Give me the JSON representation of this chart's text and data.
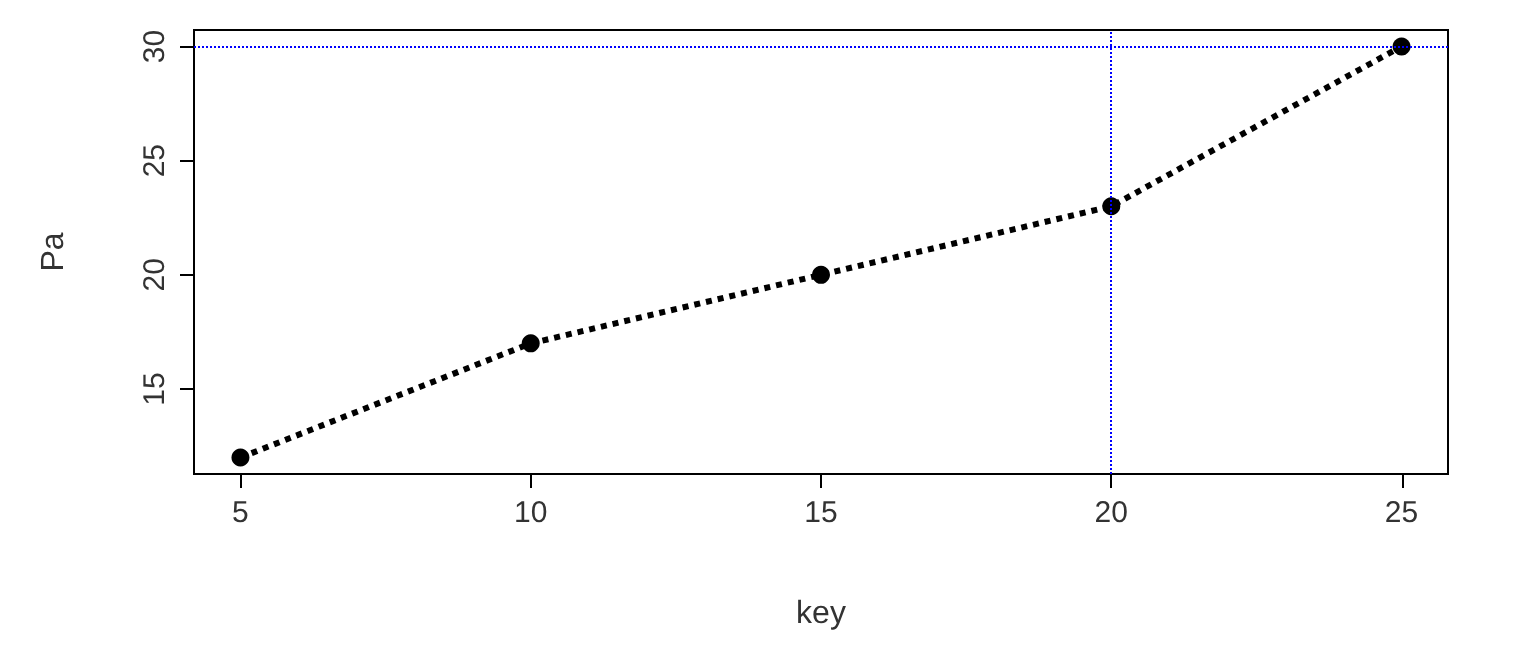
{
  "chart_data": {
    "type": "line",
    "xlabel": "key",
    "ylabel": "Pa",
    "x": [
      5,
      10,
      15,
      20,
      25
    ],
    "series": [
      {
        "color": "#000000",
        "values": [
          12,
          17,
          20,
          23,
          30
        ]
      }
    ],
    "xlim": [
      4.2,
      25.8
    ],
    "xticks": [
      5,
      10,
      15,
      20,
      25
    ],
    "ylim": [
      11.28,
      30.72
    ],
    "yticks": [
      15,
      20,
      25,
      30
    ],
    "marker": "circle",
    "line_style": "dotted",
    "grid": false,
    "ref_lines": [
      {
        "axis": "y",
        "value": 30,
        "color": "#0000ff",
        "line_style": "dotted"
      },
      {
        "axis": "x",
        "value": 20,
        "color": "#0000ff",
        "line_style": "dotted"
      }
    ]
  }
}
